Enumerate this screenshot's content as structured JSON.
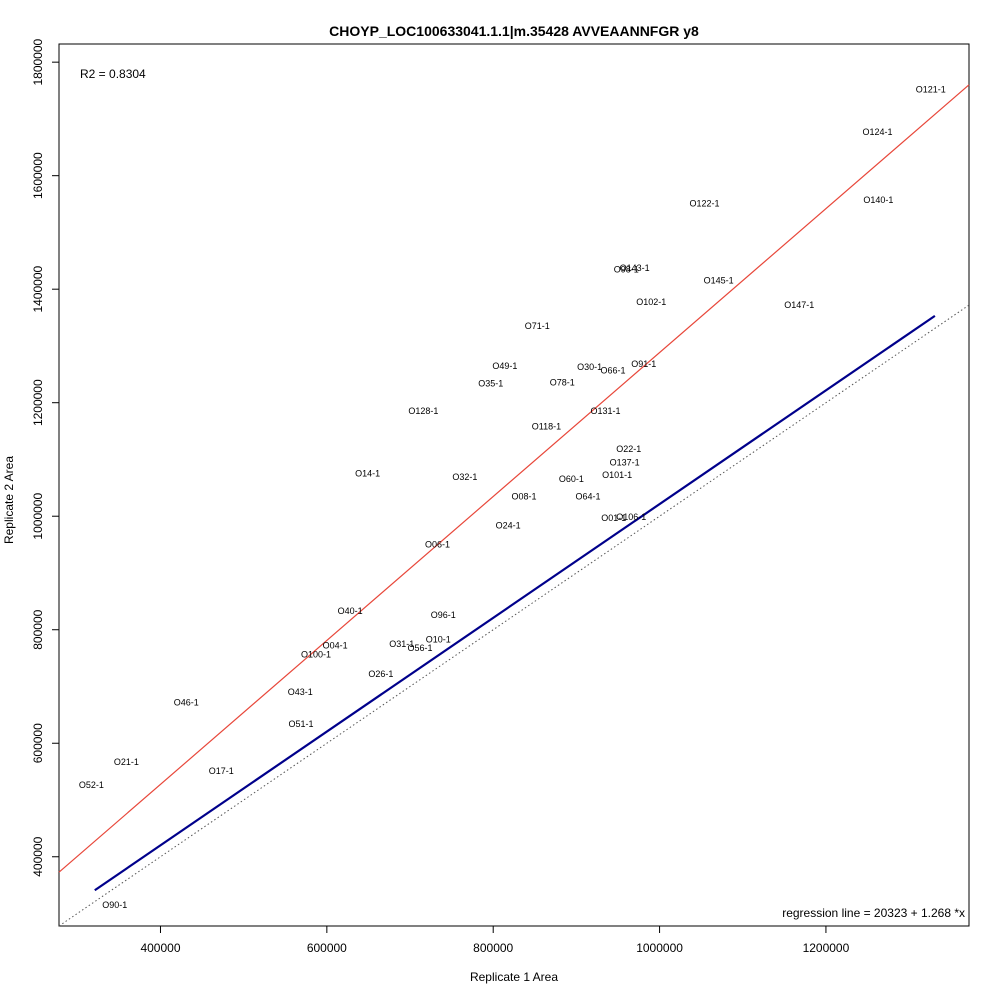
{
  "chart_data": {
    "type": "scatter",
    "title": "CHOYP_LOC100633041.1.1|m.35428 AVVEAANNFGR y8",
    "xlabel": "Replicate 1 Area",
    "ylabel": "Replicate 2 Area",
    "xlim": [
      278000,
      1372000
    ],
    "ylim": [
      278000,
      1832000
    ],
    "x_ticks": [
      400000,
      600000,
      800000,
      1000000,
      1200000
    ],
    "x_tick_labels": [
      "400000",
      "600000",
      "800000",
      "1000000",
      "1200000"
    ],
    "y_ticks": [
      400000,
      600000,
      800000,
      1000000,
      1200000,
      1400000,
      1600000,
      1800000
    ],
    "y_tick_labels": [
      "400000",
      "600000",
      "800000",
      "1000000",
      "1200000",
      "1400000",
      "1600000",
      "1800000"
    ],
    "r2_text": "R2 = 0.8304",
    "regression_text": "regression line = 20323 + 1.268 *x",
    "regression": {
      "intercept": 20323,
      "slope": 1.268,
      "color": "#e8473a"
    },
    "fit_line": {
      "from": [
        321000,
        341000
      ],
      "to": [
        1331000,
        1353000
      ],
      "color": "#00008b"
    },
    "identity_line": {
      "slope": 1,
      "intercept": 0,
      "color": "#555555"
    },
    "points": [
      {
        "label": "O121-1",
        "x": 1326000,
        "y": 1752000
      },
      {
        "label": "O124-1",
        "x": 1262000,
        "y": 1677000
      },
      {
        "label": "O140-1",
        "x": 1263000,
        "y": 1557000
      },
      {
        "label": "O122-1",
        "x": 1054000,
        "y": 1551000
      },
      {
        "label": "O98-1",
        "x": 960000,
        "y": 1435000
      },
      {
        "label": "O143-1",
        "x": 970000,
        "y": 1437000
      },
      {
        "label": "O145-1",
        "x": 1071000,
        "y": 1415000
      },
      {
        "label": "O102-1",
        "x": 990000,
        "y": 1377000
      },
      {
        "label": "O147-1",
        "x": 1168000,
        "y": 1372000
      },
      {
        "label": "O71-1",
        "x": 853000,
        "y": 1335000
      },
      {
        "label": "O49-1",
        "x": 814000,
        "y": 1265000
      },
      {
        "label": "O30-1",
        "x": 916000,
        "y": 1263000
      },
      {
        "label": "O91-1",
        "x": 981000,
        "y": 1268000
      },
      {
        "label": "O66-1",
        "x": 944000,
        "y": 1257000
      },
      {
        "label": "O35-1",
        "x": 797000,
        "y": 1234000
      },
      {
        "label": "O78-1",
        "x": 883000,
        "y": 1236000
      },
      {
        "label": "O128-1",
        "x": 716000,
        "y": 1185000
      },
      {
        "label": "O131-1",
        "x": 935000,
        "y": 1185000
      },
      {
        "label": "O118-1",
        "x": 864000,
        "y": 1158000
      },
      {
        "label": "O22-1",
        "x": 963000,
        "y": 1118000
      },
      {
        "label": "O137-1",
        "x": 958000,
        "y": 1095000
      },
      {
        "label": "O14-1",
        "x": 649000,
        "y": 1075000
      },
      {
        "label": "O101-1",
        "x": 949000,
        "y": 1073000
      },
      {
        "label": "O32-1",
        "x": 766000,
        "y": 1069000
      },
      {
        "label": "O60-1",
        "x": 894000,
        "y": 1066000
      },
      {
        "label": "O64-1",
        "x": 914000,
        "y": 1035000
      },
      {
        "label": "O08-1",
        "x": 837000,
        "y": 1035000
      },
      {
        "label": "O01-1",
        "x": 945000,
        "y": 997000
      },
      {
        "label": "O106-1",
        "x": 966000,
        "y": 999000
      },
      {
        "label": "O24-1",
        "x": 818000,
        "y": 984000
      },
      {
        "label": "O06-1",
        "x": 733000,
        "y": 950000
      },
      {
        "label": "O40-1",
        "x": 628000,
        "y": 833000
      },
      {
        "label": "O96-1",
        "x": 740000,
        "y": 826000
      },
      {
        "label": "O10-1",
        "x": 734000,
        "y": 783000
      },
      {
        "label": "O31-1",
        "x": 690000,
        "y": 775000
      },
      {
        "label": "O04-1",
        "x": 610000,
        "y": 772000
      },
      {
        "label": "O56-1",
        "x": 712000,
        "y": 768000
      },
      {
        "label": "O100-1",
        "x": 587000,
        "y": 756000
      },
      {
        "label": "O26-1",
        "x": 665000,
        "y": 722000
      },
      {
        "label": "O43-1",
        "x": 568000,
        "y": 690000
      },
      {
        "label": "O46-1",
        "x": 431000,
        "y": 672000
      },
      {
        "label": "O51-1",
        "x": 569000,
        "y": 634000
      },
      {
        "label": "O21-1",
        "x": 359000,
        "y": 567000
      },
      {
        "label": "O17-1",
        "x": 473000,
        "y": 551000
      },
      {
        "label": "O52-1",
        "x": 317000,
        "y": 526000
      },
      {
        "label": "O90-1",
        "x": 345000,
        "y": 315000
      }
    ]
  }
}
